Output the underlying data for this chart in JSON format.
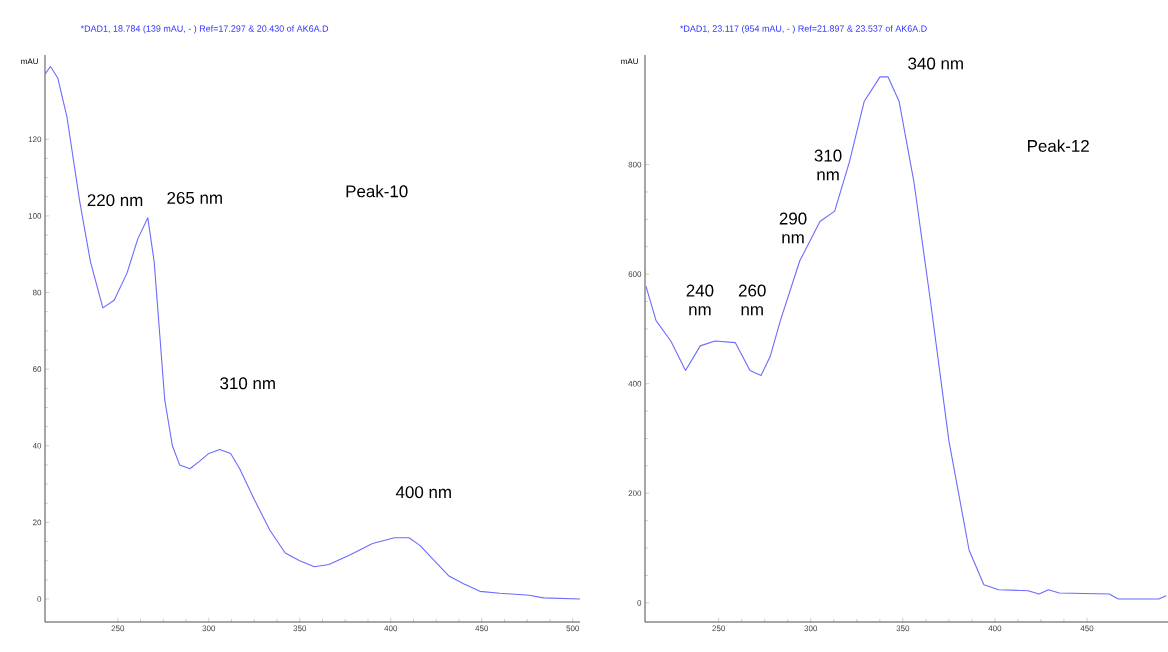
{
  "chart_data": [
    {
      "type": "line",
      "title": "*DAD1, 18.784 (139 mAU, - ) Ref=17.297 & 20.430 of AK6A.D",
      "ylabel": "mAU",
      "series": [
        {
          "color": "#6b6bff",
          "x": [
            210,
            213,
            217,
            222,
            229,
            235,
            241.8,
            248,
            255,
            261,
            266.5,
            270,
            275.8,
            280,
            284,
            289.6,
            295,
            300,
            306,
            312,
            317,
            325,
            333.5,
            342,
            350,
            358,
            366,
            377.5,
            390,
            402,
            410,
            416,
            424,
            432,
            440,
            449,
            460,
            476,
            484,
            504
          ],
          "values": [
            137,
            139,
            136,
            126,
            104,
            88,
            76,
            78,
            85,
            94,
            99.5,
            88,
            52,
            40,
            35,
            34,
            36,
            38,
            39,
            38,
            34,
            26,
            18,
            12,
            10,
            8.4,
            9,
            11.5,
            14.5,
            16,
            16,
            14,
            10,
            6,
            4,
            2,
            1.5,
            1,
            0.3,
            0
          ]
        }
      ],
      "xlim": [
        210,
        504
      ],
      "ylim": [
        -6,
        142
      ],
      "xticks": [
        250,
        300,
        350,
        400,
        450,
        500
      ],
      "yticks": [
        0,
        20,
        40,
        60,
        80,
        100,
        120
      ],
      "annotations": [
        "220 nm",
        "265 nm",
        "310 nm",
        "400 nm",
        "Peak-10"
      ]
    },
    {
      "type": "line",
      "title": "*DAD1, 23.117 (954 mAU, - ) Ref=21.897 & 23.537 of AK6A.D",
      "ylabel": "mAU",
      "series": [
        {
          "color": "#6b6bff",
          "x": [
            210.5,
            216,
            224,
            232,
            240,
            248,
            259,
            267,
            273,
            278,
            283.5,
            294,
            305,
            313,
            321,
            329,
            337.6,
            342,
            348,
            356,
            365,
            375,
            386,
            394,
            402,
            418,
            424,
            429,
            435,
            462,
            467,
            489,
            493
          ],
          "values": [
            578,
            515,
            478,
            424,
            469,
            478,
            475,
            424,
            415,
            450,
            515,
            624,
            696,
            715,
            805,
            915,
            960,
            960,
            915,
            769,
            551,
            296,
            96,
            33,
            24,
            22,
            16,
            24,
            18,
            16,
            7,
            7,
            13
          ]
        }
      ],
      "xlim": [
        210,
        494
      ],
      "ylim": [
        -35,
        1000
      ],
      "xticks": [
        250,
        300,
        350,
        400,
        450
      ],
      "yticks": [
        0,
        200,
        400,
        600,
        800
      ],
      "annotations": [
        "240 nm",
        "260 nm",
        "290 nm",
        "310 nm",
        "340 nm",
        "Peak-12"
      ]
    }
  ]
}
